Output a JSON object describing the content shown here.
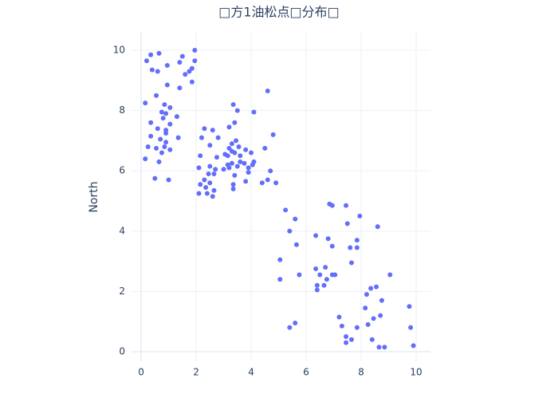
{
  "chart_data": {
    "type": "scatter",
    "title": "□方1油松点□分布□",
    "y_label": "North",
    "color": "#636efa",
    "x": [
      0.2,
      0.35,
      0.65,
      0.95,
      0.4,
      0.6,
      1.4,
      1.5,
      1.95,
      1.95,
      1.75,
      1.6,
      1.85,
      1.85,
      0.95,
      1.4,
      0.15,
      0.55,
      0.85,
      1.05,
      0.75,
      0.9,
      1.3,
      0.8,
      0.35,
      0.6,
      0.9,
      1.05,
      0.9,
      0.35,
      0.7,
      0.9,
      1.35,
      0.55,
      0.25,
      0.85,
      0.75,
      1.05,
      0.15,
      0.65,
      0.5,
      1.0,
      2.3,
      2.6,
      2.2,
      2.8,
      2.5,
      3.2,
      3.35,
      3.5,
      3.4,
      4.1,
      4.6,
      4.8,
      4.5,
      3.3,
      3.45,
      3.2,
      3.3,
      3.4,
      3.55,
      3.15,
      3.05,
      3.6,
      3.8,
      4.0,
      2.15,
      2.75,
      3.75,
      3.6,
      3.3,
      3.15,
      4.05,
      4.1,
      2.1,
      2.5,
      2.7,
      3.0,
      3.2,
      3.5,
      3.9,
      2.45,
      2.65,
      3.4,
      3.9,
      4.7,
      2.3,
      2.5,
      2.15,
      3.8,
      4.4,
      4.6,
      4.9,
      3.35,
      3.35,
      2.35,
      2.65,
      2.1,
      2.4,
      2.6,
      5.25,
      5.4,
      5.6,
      5.65,
      5.05,
      5.75,
      5.05,
      6.35,
      6.85,
      6.95,
      7.45,
      7.95,
      7.5,
      8.6,
      6.8,
      6.95,
      7.6,
      7.85,
      7.85,
      7.65,
      6.35,
      6.5,
      6.7,
      6.95,
      7.05,
      6.75,
      6.4,
      6.65,
      6.4,
      9.05,
      8.35,
      8.55,
      8.2,
      8.75,
      8.15,
      8.45,
      8.7,
      7.2,
      8.25,
      7.3,
      7.85,
      9.75,
      9.8,
      5.4,
      5.6,
      7.45,
      7.65,
      7.45,
      8.4,
      8.65,
      8.85,
      9.9
    ],
    "values": [
      9.65,
      9.85,
      9.9,
      9.5,
      9.35,
      9.3,
      9.6,
      9.8,
      10.0,
      9.65,
      9.3,
      9.2,
      9.4,
      8.95,
      8.85,
      8.75,
      8.25,
      8.5,
      8.2,
      8.1,
      7.95,
      7.9,
      7.8,
      7.75,
      7.6,
      7.4,
      7.35,
      7.55,
      7.25,
      7.15,
      7.05,
      6.95,
      7.1,
      6.75,
      6.8,
      6.8,
      6.6,
      6.7,
      6.4,
      6.3,
      5.75,
      5.7,
      7.4,
      7.35,
      7.1,
      7.1,
      6.85,
      7.45,
      8.2,
      8.0,
      7.6,
      7.95,
      8.65,
      7.2,
      6.75,
      6.9,
      7.0,
      6.75,
      6.65,
      6.6,
      6.8,
      6.5,
      6.55,
      6.5,
      6.7,
      6.6,
      6.5,
      6.45,
      6.25,
      6.3,
      6.25,
      6.2,
      6.2,
      6.3,
      6.1,
      6.15,
      6.05,
      6.05,
      6.1,
      6.15,
      6.1,
      5.9,
      5.9,
      5.85,
      5.95,
      6.0,
      5.7,
      5.6,
      5.55,
      5.65,
      5.6,
      5.7,
      5.6,
      5.55,
      5.4,
      5.45,
      5.35,
      5.25,
      5.25,
      5.15,
      4.7,
      4.0,
      4.4,
      3.55,
      3.05,
      2.55,
      2.4,
      3.85,
      4.9,
      4.85,
      4.85,
      4.5,
      4.25,
      4.15,
      3.75,
      3.5,
      3.45,
      3.7,
      3.45,
      2.95,
      2.75,
      2.55,
      2.8,
      2.55,
      2.55,
      2.4,
      2.2,
      2.2,
      2.05,
      2.55,
      2.1,
      2.15,
      1.9,
      1.7,
      1.45,
      1.1,
      1.2,
      1.15,
      0.9,
      0.85,
      0.8,
      1.5,
      0.8,
      0.8,
      0.95,
      0.5,
      0.4,
      0.3,
      0.4,
      0.15,
      0.15,
      0.2
    ],
    "xlim": [
      -0.35,
      10.52
    ],
    "ylim": [
      -0.32,
      10.61
    ],
    "xticks": [
      0,
      2,
      4,
      6,
      8,
      10
    ],
    "yticks": [
      0,
      2,
      4,
      6,
      8,
      10
    ],
    "grid": true
  }
}
